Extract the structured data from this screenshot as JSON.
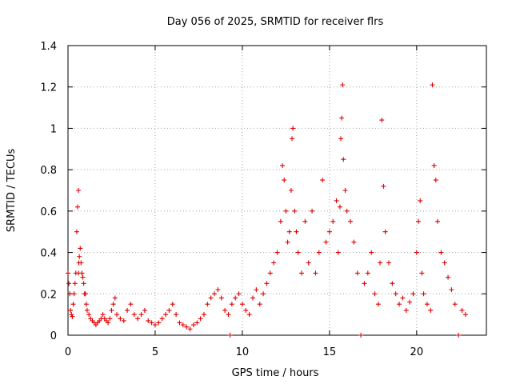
{
  "chart_data": {
    "type": "scatter",
    "title": "Day 056 of 2025, SRMTID for receiver flrs",
    "xlabel": "GPS time / hours",
    "ylabel": "SRMTID / TECUs",
    "xlim": [
      0,
      24
    ],
    "ylim": [
      0,
      1.4
    ],
    "xticks": [
      0,
      5,
      10,
      15,
      20
    ],
    "xtick_labels": [
      "0",
      "5",
      "10",
      "15",
      "20"
    ],
    "yticks": [
      0,
      0.2,
      0.4,
      0.6,
      0.8,
      1.0,
      1.2,
      1.4
    ],
    "ytick_labels": [
      "0",
      "0.2",
      "0.4",
      "0.6",
      "0.8",
      "1",
      "1.2",
      "1.4"
    ],
    "grid": true,
    "marker": "+",
    "marker_color": "#e00000",
    "series": [
      {
        "name": "SRMTID",
        "x": [
          0.0,
          0.05,
          0.1,
          0.15,
          0.2,
          0.25,
          0.3,
          0.35,
          0.4,
          0.45,
          0.5,
          0.55,
          0.6,
          0.6,
          0.62,
          0.65,
          0.7,
          0.75,
          0.8,
          0.85,
          0.9,
          0.95,
          1.0,
          1.05,
          1.1,
          1.2,
          1.3,
          1.4,
          1.5,
          1.6,
          1.7,
          1.8,
          1.9,
          2.0,
          2.1,
          2.2,
          2.3,
          2.4,
          2.5,
          2.6,
          2.7,
          2.8,
          3.0,
          3.2,
          3.4,
          3.6,
          3.8,
          4.0,
          4.2,
          4.4,
          4.6,
          4.8,
          5.0,
          5.2,
          5.4,
          5.6,
          5.8,
          6.0,
          6.2,
          6.4,
          6.6,
          6.8,
          7.0,
          7.2,
          7.4,
          7.6,
          7.8,
          8.0,
          8.2,
          8.4,
          8.6,
          8.8,
          9.0,
          9.2,
          9.3,
          9.4,
          9.6,
          9.8,
          10.0,
          10.2,
          10.4,
          10.6,
          10.8,
          11.0,
          11.2,
          11.4,
          11.6,
          11.8,
          12.0,
          12.2,
          12.3,
          12.4,
          12.5,
          12.6,
          12.7,
          12.8,
          12.85,
          12.9,
          13.0,
          13.1,
          13.2,
          13.4,
          13.6,
          13.8,
          14.0,
          14.2,
          14.4,
          14.6,
          14.8,
          15.0,
          15.2,
          15.4,
          15.5,
          15.6,
          15.65,
          15.7,
          15.75,
          15.8,
          15.9,
          16.0,
          16.2,
          16.4,
          16.6,
          16.8,
          17.0,
          17.2,
          17.4,
          17.6,
          17.8,
          17.9,
          18.0,
          18.1,
          18.2,
          18.4,
          18.6,
          18.8,
          19.0,
          19.2,
          19.4,
          19.6,
          19.8,
          20.0,
          20.1,
          20.2,
          20.3,
          20.4,
          20.6,
          20.8,
          20.9,
          21.0,
          21.1,
          21.2,
          21.4,
          21.6,
          21.8,
          22.0,
          22.2,
          22.4,
          22.6,
          22.8
        ],
        "y": [
          0.3,
          0.25,
          0.2,
          0.12,
          0.1,
          0.09,
          0.15,
          0.2,
          0.25,
          0.3,
          0.5,
          0.62,
          0.7,
          0.3,
          0.35,
          0.38,
          0.42,
          0.35,
          0.3,
          0.28,
          0.25,
          0.2,
          0.2,
          0.15,
          0.12,
          0.1,
          0.08,
          0.07,
          0.06,
          0.05,
          0.06,
          0.07,
          0.08,
          0.1,
          0.08,
          0.07,
          0.06,
          0.08,
          0.12,
          0.15,
          0.18,
          0.1,
          0.08,
          0.07,
          0.12,
          0.15,
          0.1,
          0.08,
          0.1,
          0.12,
          0.07,
          0.06,
          0.05,
          0.06,
          0.08,
          0.1,
          0.12,
          0.15,
          0.1,
          0.06,
          0.05,
          0.04,
          0.03,
          0.05,
          0.06,
          0.08,
          0.1,
          0.15,
          0.18,
          0.2,
          0.22,
          0.18,
          0.12,
          0.1,
          0.0,
          0.15,
          0.18,
          0.2,
          0.15,
          0.12,
          0.1,
          0.18,
          0.22,
          0.15,
          0.2,
          0.25,
          0.3,
          0.35,
          0.4,
          0.55,
          0.82,
          0.75,
          0.6,
          0.45,
          0.5,
          0.7,
          0.95,
          1.0,
          0.6,
          0.5,
          0.4,
          0.3,
          0.55,
          0.35,
          0.6,
          0.3,
          0.4,
          0.75,
          0.45,
          0.5,
          0.55,
          0.65,
          0.4,
          0.62,
          0.95,
          1.05,
          1.21,
          0.85,
          0.7,
          0.6,
          0.55,
          0.45,
          0.3,
          0.0,
          0.25,
          0.3,
          0.4,
          0.2,
          0.15,
          0.35,
          1.04,
          0.72,
          0.5,
          0.35,
          0.25,
          0.2,
          0.15,
          0.18,
          0.12,
          0.16,
          0.2,
          0.4,
          0.55,
          0.65,
          0.3,
          0.2,
          0.15,
          0.12,
          1.21,
          0.82,
          0.75,
          0.55,
          0.4,
          0.35,
          0.28,
          0.22,
          0.15,
          0.0,
          0.12,
          0.1
        ]
      }
    ]
  }
}
